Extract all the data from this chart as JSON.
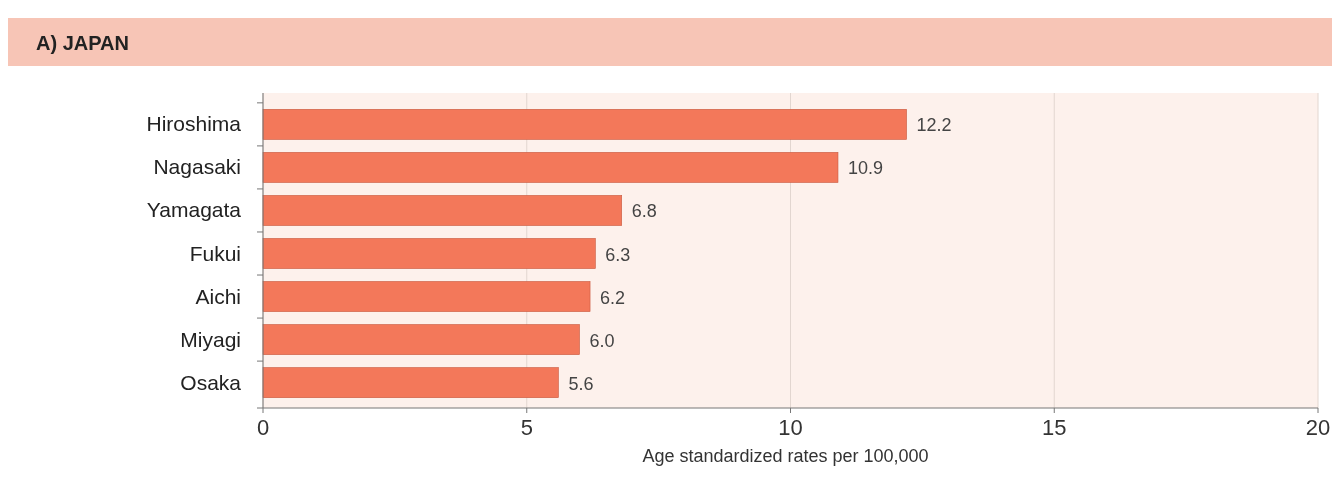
{
  "chart_data": {
    "type": "bar",
    "orientation": "horizontal",
    "title": "A) JAPAN",
    "xlabel": "Age standardized rates per 100,000",
    "categories": [
      "Hiroshima",
      "Nagasaki",
      "Yamagata",
      "Fukui",
      "Aichi",
      "Miyagi",
      "Osaka"
    ],
    "values": [
      12.2,
      10.9,
      6.8,
      6.3,
      6.2,
      6.0,
      5.6
    ],
    "value_labels": [
      "12.2",
      "10.9",
      "6.8",
      "6.3",
      "6.2",
      "6.0",
      "5.6"
    ],
    "color": "#f3785a",
    "xlim": [
      0,
      20
    ],
    "xticks": [
      0,
      5,
      10,
      15,
      20
    ],
    "grid": "x"
  }
}
